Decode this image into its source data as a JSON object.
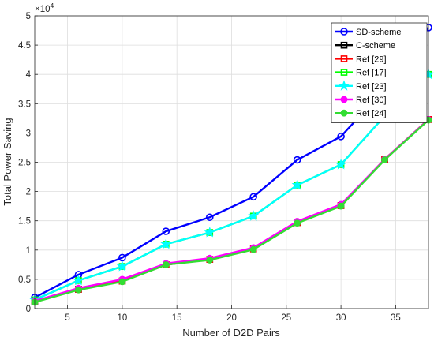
{
  "chart_data": {
    "type": "line",
    "xlabel": "Number of D2D Pairs",
    "ylabel": "Total Power Saving",
    "exponent_label": "×10",
    "exponent_power": "4",
    "xlim": [
      2,
      38
    ],
    "ylim": [
      0,
      5
    ],
    "xticks": [
      5,
      10,
      15,
      20,
      25,
      30,
      35
    ],
    "yticks": [
      0,
      0.5,
      1,
      1.5,
      2,
      2.5,
      3,
      3.5,
      4,
      4.5,
      5
    ],
    "ytick_labels": [
      "0",
      "0.5",
      "1",
      "1.5",
      "2",
      "2.5",
      "3",
      "3.5",
      "4",
      "4.5",
      "5"
    ],
    "grid": true,
    "legend_position": "top-right",
    "x": [
      2,
      6,
      10,
      14,
      18,
      22,
      26,
      30,
      34,
      38
    ],
    "series": [
      {
        "name": "SD-scheme",
        "color": "#0000ff",
        "marker": "circle",
        "values": [
          0.19,
          0.58,
          0.87,
          1.32,
          1.56,
          1.91,
          2.54,
          2.94,
          3.75,
          4.8
        ]
      },
      {
        "name": "C-scheme",
        "color": "#000000",
        "marker": "square",
        "values": [
          0.12,
          0.33,
          0.47,
          0.75,
          0.84,
          1.02,
          1.47,
          1.76,
          2.55,
          3.23
        ]
      },
      {
        "name": "Ref [29]",
        "color": "#ff0000",
        "marker": "square",
        "values": [
          0.12,
          0.33,
          0.47,
          0.75,
          0.84,
          1.02,
          1.47,
          1.76,
          2.55,
          3.23
        ]
      },
      {
        "name": "Ref [17]",
        "color": "#00ff00",
        "marker": "square",
        "values": [
          0.15,
          0.48,
          0.72,
          1.1,
          1.3,
          1.58,
          2.11,
          2.46,
          3.29,
          4.0
        ]
      },
      {
        "name": "Ref [23]",
        "color": "#00ffff",
        "marker": "star",
        "values": [
          0.15,
          0.48,
          0.72,
          1.1,
          1.3,
          1.58,
          2.11,
          2.46,
          3.29,
          4.0
        ]
      },
      {
        "name": "Ref [30]",
        "color": "#ff00ff",
        "marker": "circle-filled",
        "values": [
          0.13,
          0.35,
          0.5,
          0.77,
          0.86,
          1.04,
          1.49,
          1.78,
          2.55,
          3.23
        ]
      },
      {
        "name": "Ref [24]",
        "color": "#33dd33",
        "marker": "circle-filled",
        "values": [
          0.11,
          0.32,
          0.46,
          0.75,
          0.83,
          1.01,
          1.46,
          1.75,
          2.54,
          3.22
        ]
      }
    ]
  }
}
